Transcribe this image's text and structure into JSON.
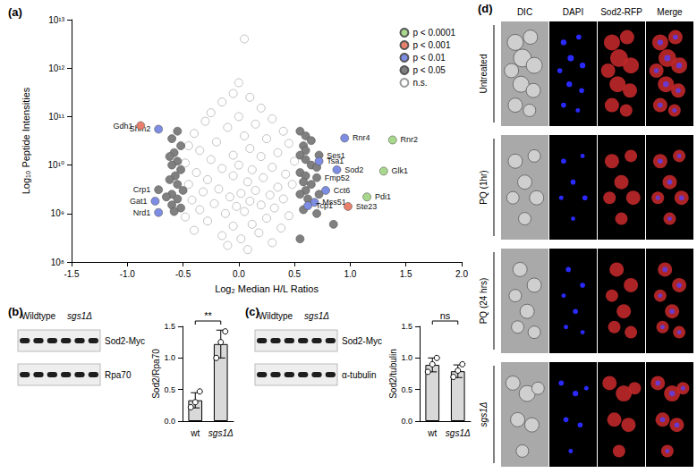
{
  "chart_data": [
    {
      "type": "scatter",
      "title": "(a)",
      "xlabel": "Log₂ Median H/L Ratios",
      "ylabel": "Log₁₀ Peptide Intensities",
      "log": "y",
      "grid": false,
      "legend": "upper right",
      "xlim": [
        -1.5,
        2
      ],
      "xticks": [
        -1.5,
        {
          "value": -1,
          "label": "-1.0"
        },
        -0.5,
        {
          "value": 0,
          "label": "0.0"
        },
        0.5,
        {
          "value": 1,
          "label": "1.0"
        },
        1.5,
        {
          "value": 2,
          "label": "2.0"
        }
      ],
      "ylim": [
        100000000.0,
        10000000000000.0
      ],
      "yticks": [
        {
          "value": 100000000.0,
          "label": "10⁸"
        },
        {
          "value": 1000000000.0,
          "label": "10⁹"
        },
        {
          "value": 10000000000.0,
          "label": "10¹⁰"
        },
        {
          "value": 100000000000.0,
          "label": "10¹¹"
        },
        {
          "value": 1000000000000.0,
          "label": "10¹²"
        },
        {
          "value": 10000000000000.0,
          "label": "10¹³"
        }
      ],
      "series": [
        {
          "name": "p < 0.0001",
          "color": "#a8d88c",
          "x": [
            1.38,
            1.3,
            1.15
          ],
          "values": [
            33000000000.0,
            7500000000.0,
            2200000000.0
          ],
          "labels": [
            "Rnr2",
            "Glk1",
            "Pdi1"
          ]
        },
        {
          "name": "p < 0.001",
          "color": "#e9806b",
          "x": [
            -0.88,
            0.98
          ],
          "values": [
            65000000000.0,
            1400000000.0
          ],
          "labels": [
            "Gdh1",
            "Ste23"
          ]
        },
        {
          "name": "p < 0.01",
          "color": "#7d8de3",
          "x": [
            -0.72,
            -0.75,
            -0.72,
            0.95,
            0.72,
            0.88,
            0.78,
            0.68,
            0.62
          ],
          "values": [
            55000000000.0,
            1800000000.0,
            1050000000.0,
            36000000000.0,
            12000000000.0,
            8000000000.0,
            3000000000.0,
            1700000000.0,
            1450000000.0
          ],
          "labels": [
            "Shm2",
            "Gat1",
            "Nrd1",
            "Rnr4",
            "Tsa1",
            "Sod2",
            "Cct6",
            "Mss51",
            "Tcp1"
          ]
        },
        {
          "name": "p < 0.05",
          "color": "#808080",
          "x": [
            0.72,
            0.7,
            -0.72,
            -0.55,
            -0.6,
            -0.52,
            -0.58,
            -0.62,
            -0.55,
            -0.6,
            -0.52,
            -0.57,
            -0.62,
            -0.55,
            -0.5,
            -0.6,
            -0.65,
            -0.55,
            -0.6,
            -0.52,
            -0.58,
            0.55,
            0.6,
            0.65,
            0.58,
            0.6,
            0.55,
            0.6,
            0.65,
            0.7,
            0.55,
            0.6,
            0.58,
            0.65,
            0.6,
            0.55,
            0.62,
            0.72,
            0.58,
            0.7,
            0.85,
            0.55
          ],
          "values": [
            16000000000.0,
            5500000000.0,
            3100000000.0,
            50000000000.0,
            35000000000.0,
            25000000000.0,
            18000000000.0,
            15000000000.0,
            12000000000.0,
            10000000000.0,
            8000000000.0,
            6000000000.0,
            5000000000.0,
            4000000000.0,
            3000000000.0,
            2500000000.0,
            2200000000.0,
            2000000000.0,
            1500000000.0,
            1300000000.0,
            1100000000.0,
            50000000000.0,
            40000000000.0,
            32000000000.0,
            25000000000.0,
            20000000000.0,
            16000000000.0,
            13000000000.0,
            10000000000.0,
            9000000000.0,
            7000000000.0,
            6000000000.0,
            4500000000.0,
            4000000000.0,
            3000000000.0,
            2500000000.0,
            2000000000.0,
            2500000000.0,
            1200000000.0,
            1000000000.0,
            600000000.0,
            300000000.0
          ],
          "labels": [
            "Ses1",
            "Fmp52",
            "Crp1",
            null,
            null,
            null,
            null,
            null,
            null,
            null,
            null,
            null,
            null,
            null,
            null,
            null,
            null,
            null,
            null,
            null,
            null,
            null,
            null,
            null,
            null,
            null,
            null,
            null,
            null,
            null,
            null,
            null,
            null,
            null,
            null,
            null,
            null,
            null,
            null,
            null,
            null,
            null
          ]
        },
        {
          "name": "n.s.",
          "color": "#ffffff",
          "x": [
            0.05,
            0,
            -0.05,
            0.1,
            -0.15,
            0.2,
            -0.25,
            0,
            0.3,
            -0.3,
            0.15,
            -0.1,
            0.4,
            -0.4,
            0.05,
            0.25,
            -0.2,
            0.45,
            -0.45,
            0.1,
            -0.35,
            0.35,
            -0.05,
            0.2,
            -0.25,
            0.5,
            -0.48,
            0,
            0.3,
            -0.15,
            0.12,
            -0.38,
            0.42,
            -0.05,
            0.22,
            -0.28,
            0.08,
            -0.45,
            0.48,
            0.35,
            -0.18,
            0.15,
            -0.32,
            0.02,
            0.28,
            -0.08,
            0.4,
            -0.42,
            0.1,
            -0.22,
            0.2,
            -0.02,
            0.32,
            -0.35,
            0.05,
            -0.12,
            0.45,
            -0.48,
            0.25,
            -0.28,
            0.12,
            -0.05,
            0.38,
            -0.4,
            0.18,
            -0.15,
            0.02,
            0.3,
            -0.1,
            0.08
          ],
          "values": [
            4000000000000.0,
            500000000000.0,
            300000000000.0,
            250000000000.0,
            200000000000.0,
            150000000000.0,
            120000000000.0,
            100000000000.0,
            90000000000.0,
            80000000000.0,
            70000000000.0,
            60000000000.0,
            50000000000.0,
            45000000000.0,
            40000000000.0,
            35000000000.0,
            30000000000.0,
            28000000000.0,
            25000000000.0,
            22000000000.0,
            20000000000.0,
            18000000000.0,
            16000000000.0,
            15000000000.0,
            13000000000.0,
            12000000000.0,
            11000000000.0,
            10000000000.0,
            9000000000.0,
            8500000000.0,
            8000000000.0,
            7000000000.0,
            6500000000.0,
            6000000000.0,
            5500000000.0,
            5000000000.0,
            4500000000.0,
            4000000000.0,
            4000000000.0,
            3500000000.0,
            3200000000.0,
            3000000000.0,
            2800000000.0,
            2600000000.0,
            2400000000.0,
            2200000000.0,
            2000000000.0,
            1900000000.0,
            1800000000.0,
            1600000000.0,
            1500000000.0,
            1400000000.0,
            1300000000.0,
            1200000000.0,
            1100000000.0,
            1000000000.0,
            900000000.0,
            850000000.0,
            800000000.0,
            700000000.0,
            600000000.0,
            550000000.0,
            500000000.0,
            450000000.0,
            400000000.0,
            350000000.0,
            300000000.0,
            250000000.0,
            220000000.0,
            180000000.0
          ]
        }
      ]
    },
    {
      "type": "bar",
      "title": "(b)",
      "ylabel": "Sod2/Rpa70",
      "categories": [
        "wt",
        "sgs1Δ"
      ],
      "values": [
        0.33,
        1.22
      ],
      "error": [
        0.12,
        0.22
      ],
      "points": [
        [
          0.22,
          0.3,
          0.47
        ],
        [
          1.0,
          1.25,
          1.42
        ]
      ],
      "color": "#d9d9d9",
      "grid": false,
      "annotation": "**",
      "ylim": [
        0,
        1.5
      ],
      "yticks": [
        {
          "value": 0,
          "label": "0.0"
        },
        0.5,
        {
          "value": 1,
          "label": "1.0"
        },
        1.5
      ]
    },
    {
      "type": "bar",
      "title": "(c)",
      "ylabel": "Sod2/tubulin",
      "categories": [
        "wt",
        "sgs1Δ"
      ],
      "values": [
        0.89,
        0.79
      ],
      "error": [
        0.11,
        0.1
      ],
      "points": [
        [
          0.78,
          0.9,
          1.0
        ],
        [
          0.7,
          0.8,
          0.9
        ]
      ],
      "color": "#d9d9d9",
      "grid": false,
      "annotation": "ns",
      "ylim": [
        0,
        1.5
      ],
      "yticks": [
        {
          "value": 0,
          "label": "0.0"
        },
        0.5,
        {
          "value": 1,
          "label": "1.0"
        },
        1.5
      ]
    }
  ],
  "blots": [
    {
      "groups": [
        "Wildtype",
        "sgs1Δ"
      ],
      "bands": [
        "Sod2-Myc",
        "Rpa70"
      ]
    },
    {
      "groups": [
        "Wildtype",
        "sgs1Δ"
      ],
      "bands": [
        "Sod2-Myc",
        "α-tubulin"
      ]
    }
  ],
  "micrographs": {
    "title": "(d)",
    "columns": [
      "DIC",
      "DAPI",
      "Sod2-RFP",
      "Merge"
    ],
    "rows": [
      "Untreated",
      "PQ (1hr)",
      "PQ (24 hrs)",
      "sgs1Δ"
    ]
  }
}
